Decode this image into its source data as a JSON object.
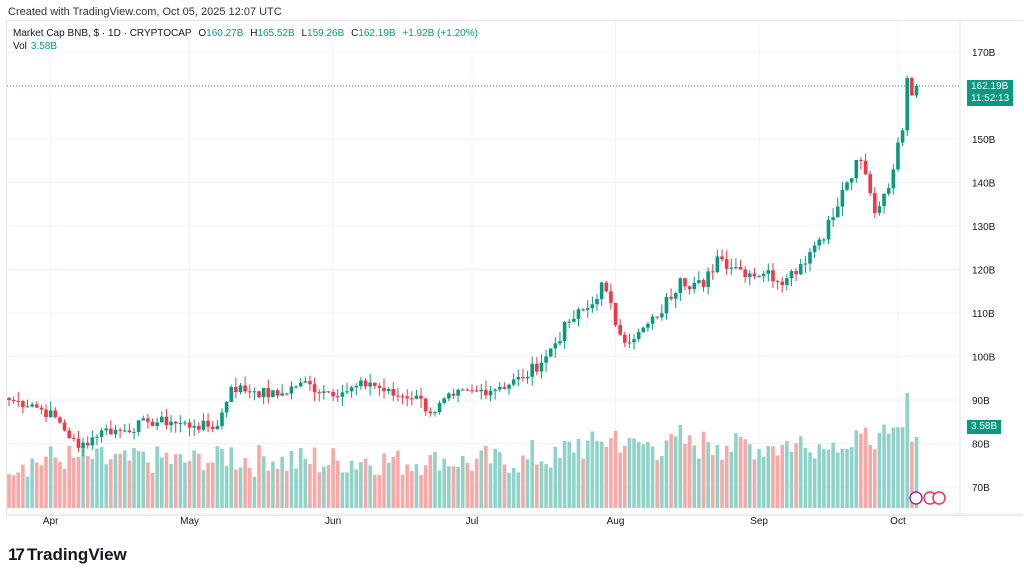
{
  "credit": "Created with TradingView.com, Oct 05, 2025 12:07 UTC",
  "legend": {
    "symbol": "Market Cap BNB, $ · 1D · CRYPTOCAP",
    "o_label": "O",
    "o": "160.27B",
    "h_label": "H",
    "h": "165.52B",
    "l_label": "L",
    "l": "159.26B",
    "c_label": "C",
    "c": "162.19B",
    "change": "+1.92B (+1.20%)",
    "vol_label": "Vol",
    "vol": "3.58B"
  },
  "price_tag": {
    "price": "162.19B",
    "countdown": "11:52:13"
  },
  "vol_tag": "3.58B",
  "brand": "TradingView",
  "colors": {
    "up": "#089981",
    "down": "#f23645",
    "vol_up": "#8fd3c8",
    "vol_down": "#f7a9a7"
  },
  "chart_data": {
    "type": "candlestick",
    "title": "Market Cap BNB, $ · 1D · CRYPTOCAP",
    "ylim": [
      65,
      175
    ],
    "y_ticks": [
      "170B",
      "150B",
      "140B",
      "130B",
      "120B",
      "110B",
      "100B",
      "90B",
      "80B",
      "70B"
    ],
    "y_tick_values": [
      170,
      150,
      140,
      130,
      120,
      110,
      100,
      90,
      80,
      70
    ],
    "x_ticks": [
      "Apr",
      "May",
      "Jun",
      "Jul",
      "Aug",
      "Sep",
      "Oct"
    ],
    "x_tick_days": [
      9,
      39,
      70,
      100,
      131,
      162,
      192
    ],
    "anchors_day": [
      0,
      5,
      10,
      15,
      20,
      25,
      30,
      35,
      40,
      45,
      48,
      53,
      58,
      63,
      68,
      73,
      78,
      83,
      88,
      91,
      96,
      101,
      106,
      111,
      116,
      121,
      126,
      128,
      132,
      135,
      140,
      145,
      150,
      153,
      158,
      163,
      168,
      173,
      178,
      181,
      184,
      187,
      191,
      193,
      194,
      195,
      196
    ],
    "anchors_close_B": [
      90,
      89,
      86,
      79,
      83,
      83,
      85,
      85,
      84,
      84,
      93,
      92,
      91,
      94,
      92,
      92,
      94,
      91,
      91,
      87,
      91,
      92,
      93,
      95,
      100,
      108,
      112,
      117,
      105,
      104,
      109,
      118,
      116,
      123,
      120,
      119,
      118,
      124,
      132,
      140,
      145,
      133,
      143,
      152,
      164,
      160,
      162.19
    ]
  }
}
